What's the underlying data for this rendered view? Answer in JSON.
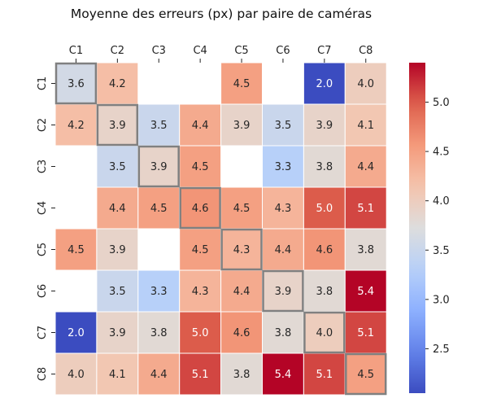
{
  "chart_data": {
    "type": "heatmap",
    "title": "Moyenne des erreurs (px) par paire de caméras",
    "xlabel": "",
    "ylabel": "",
    "x_categories": [
      "C1",
      "C2",
      "C3",
      "C4",
      "C5",
      "C6",
      "C7",
      "C8"
    ],
    "y_categories": [
      "C1",
      "C2",
      "C3",
      "C4",
      "C5",
      "C6",
      "C7",
      "C8"
    ],
    "values": [
      [
        3.6,
        4.2,
        null,
        null,
        4.5,
        null,
        2.0,
        4.0
      ],
      [
        4.2,
        3.9,
        3.5,
        4.4,
        3.9,
        3.5,
        3.9,
        4.1
      ],
      [
        null,
        3.5,
        3.9,
        4.5,
        null,
        3.3,
        3.8,
        4.4
      ],
      [
        null,
        4.4,
        4.5,
        4.6,
        4.5,
        4.3,
        5.0,
        5.1
      ],
      [
        4.5,
        3.9,
        null,
        4.5,
        4.3,
        4.4,
        4.6,
        3.8
      ],
      [
        null,
        3.5,
        3.3,
        4.3,
        4.4,
        3.9,
        3.8,
        5.4
      ],
      [
        2.0,
        3.9,
        3.8,
        5.0,
        4.6,
        3.8,
        4.0,
        5.1
      ],
      [
        4.0,
        4.1,
        4.4,
        5.1,
        3.8,
        5.4,
        5.1,
        4.5
      ]
    ],
    "colormap": "coolwarm",
    "colorbar": {
      "vmin": 2.05,
      "vmax": 5.4,
      "ticks": [
        2.5,
        3.0,
        3.5,
        4.0,
        4.5,
        5.0
      ],
      "tick_labels": [
        "2.5",
        "3.0",
        "3.5",
        "4.0",
        "4.5",
        "5.0"
      ]
    },
    "x_ticks_position": "top",
    "highlight_diagonal": true,
    "highlight_color": "#808080",
    "grid": false,
    "legend": "colorbar-right"
  }
}
